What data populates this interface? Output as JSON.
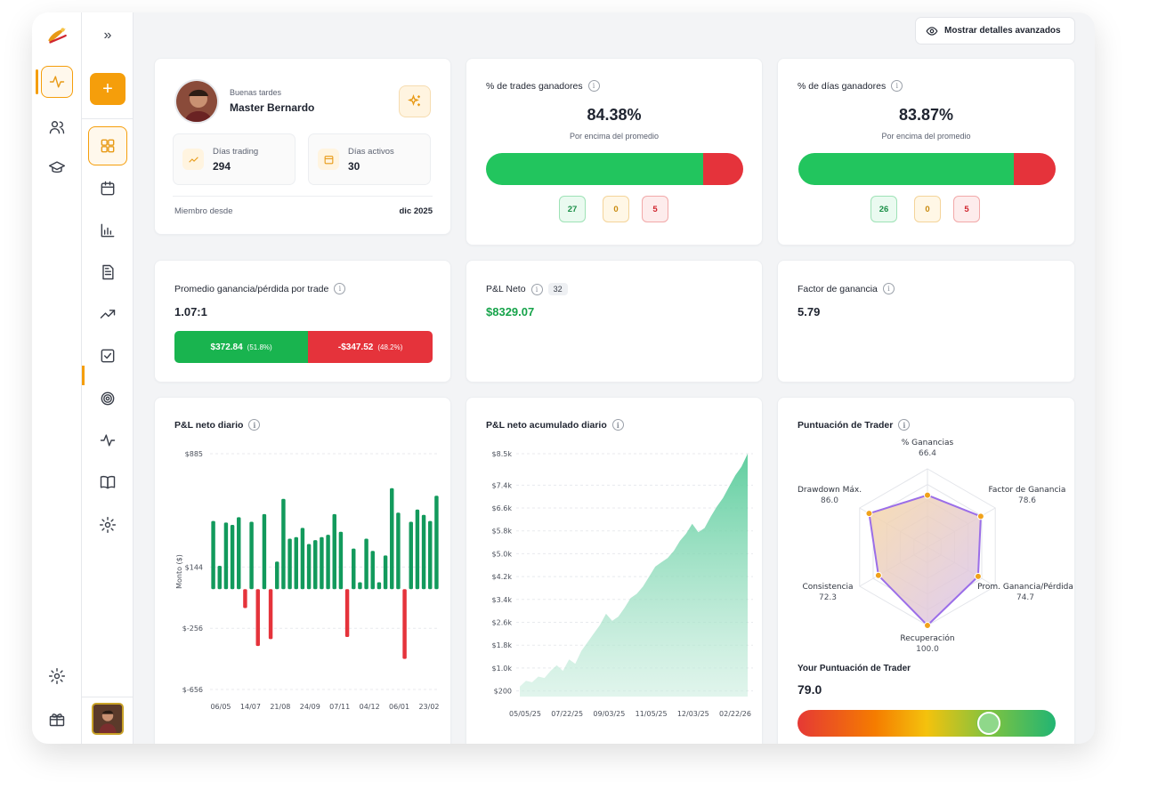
{
  "header": {
    "advanced_button": "Mostrar detalles avanzados"
  },
  "sidebar_secondary": {
    "collapse_label": "»",
    "add_label": "+"
  },
  "profile": {
    "greeting": "Buenas tardes",
    "name": "Master Bernardo",
    "trading_days_label": "Días trading",
    "trading_days_value": "294",
    "active_days_label": "Días activos",
    "active_days_value": "30",
    "member_since_label": "Miembro desde",
    "member_since_value": "dic 2025"
  },
  "win_trades": {
    "title": "% de trades ganadores",
    "value": "84.38%",
    "subtitle": "Por encima del promedio",
    "win_fraction": 0.8438,
    "counts": {
      "win": "27",
      "even": "0",
      "loss": "5"
    }
  },
  "win_days": {
    "title": "% de días ganadores",
    "value": "83.87%",
    "subtitle": "Por encima del promedio",
    "win_fraction": 0.8387,
    "counts": {
      "win": "26",
      "even": "0",
      "loss": "5"
    }
  },
  "avg_win_loss": {
    "title": "Promedio ganancia/pérdida por trade",
    "value": "1.07:1",
    "win_amount": "$372.84",
    "win_pct": "(51.8%)",
    "loss_amount": "-$347.52",
    "loss_pct": "(48.2%)",
    "win_fraction": 0.518
  },
  "net_pnl": {
    "title": "P&L Neto",
    "badge": "32",
    "value": "$8329.07"
  },
  "profit_factor": {
    "title": "Factor de ganancia",
    "value": "5.79"
  },
  "trader_score": {
    "title": "Puntuación de Trader",
    "score_label": "Your Puntuación de Trader",
    "score_value": "79.0",
    "score_fraction": 0.79
  },
  "colors": {
    "accent": "#f59e0b",
    "green": "#22c55e",
    "red": "#e5333b",
    "dark_green": "#129a5c"
  },
  "chart_data": [
    {
      "type": "bar",
      "title": "P&L neto diario",
      "ylabel": "Monto ($)",
      "y_ticks": [
        "$885",
        "$144",
        "$-256",
        "$-656"
      ],
      "y_tick_values": [
        885,
        144,
        -256,
        -656
      ],
      "x_ticks": [
        "06/05",
        "14/07",
        "21/08",
        "24/09",
        "07/11",
        "04/12",
        "06/01",
        "23/02"
      ],
      "ylim": [
        -656,
        885
      ],
      "values": [
        445,
        152,
        435,
        420,
        470,
        -124,
        440,
        -372,
        490,
        -327,
        180,
        590,
        330,
        340,
        400,
        295,
        320,
        340,
        355,
        490,
        375,
        -313,
        265,
        45,
        330,
        250,
        45,
        220,
        660,
        500,
        -456,
        440,
        520,
        485,
        445,
        610
      ]
    },
    {
      "type": "area",
      "title": "P&L neto acumulado diario",
      "y_ticks": [
        "$8.5k",
        "$7.4k",
        "$6.6k",
        "$5.8k",
        "$5.0k",
        "$4.2k",
        "$3.4k",
        "$2.6k",
        "$1.8k",
        "$1.0k",
        "$200"
      ],
      "y_tick_values": [
        8500,
        7400,
        6600,
        5800,
        5000,
        4200,
        3400,
        2600,
        1800,
        1000,
        200
      ],
      "x_ticks": [
        "05/05/25",
        "07/22/25",
        "09/03/25",
        "11/05/25",
        "12/03/25",
        "02/22/26"
      ],
      "ylim": [
        0,
        8500
      ],
      "values": [
        350,
        550,
        500,
        700,
        650,
        900,
        1100,
        900,
        1300,
        1150,
        1600,
        1900,
        2200,
        2500,
        2900,
        2650,
        2800,
        3100,
        3450,
        3600,
        3850,
        4200,
        4550,
        4700,
        4850,
        5100,
        5450,
        5700,
        6050,
        5750,
        5900,
        6300,
        6650,
        6950,
        7350,
        7750,
        8050,
        8500
      ]
    },
    {
      "type": "radar",
      "title": "Puntuación de Trader",
      "axes": [
        {
          "name": "% Ganancias",
          "value": 66.4,
          "label": "66.4"
        },
        {
          "name": "Factor de Ganancia",
          "value": 78.6,
          "label": "78.6"
        },
        {
          "name": "Prom. Ganancia/Pérdida",
          "value": 74.7,
          "label": "74.7"
        },
        {
          "name": "Recuperación",
          "value": 100.0,
          "label": "100.0"
        },
        {
          "name": "Consistencia",
          "value": 72.3,
          "label": "72.3"
        },
        {
          "name": "Drawdown Máx.",
          "value": 86.0,
          "label": "86.0"
        }
      ],
      "range": [
        0,
        100
      ]
    }
  ]
}
